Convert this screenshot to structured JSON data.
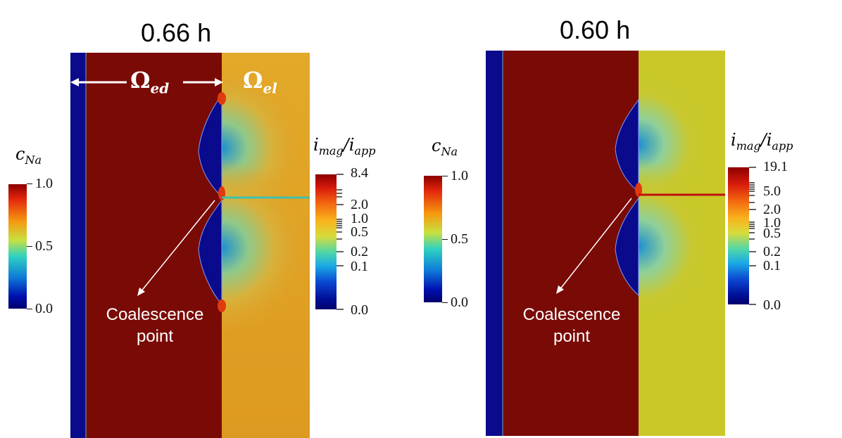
{
  "panels": [
    {
      "time_label": "0.66 h",
      "domain_labels": {
        "electrode": "Ω",
        "electrode_sub": "ed",
        "electrolyte": "Ω",
        "electrolyte_sub": "el"
      },
      "annotation": {
        "line1": "Coalescence",
        "line2": "point"
      },
      "cna_colorbar": {
        "label": "c",
        "label_sub": "Na",
        "ticks": [
          "1.0",
          "0.5",
          "0.0"
        ]
      },
      "imag_colorbar": {
        "label": "i",
        "label_sub1": "mag",
        "label_sep": "/i",
        "label_sub2": "app",
        "ticks": [
          "8.4",
          "2.0",
          "1.0",
          "0.5",
          "0.2",
          "0.1",
          "0.0"
        ]
      },
      "field_colors": {
        "electrode": "#7a0a06",
        "electrolyte": "#e0a025",
        "depleted": "#0a0a8c"
      }
    },
    {
      "time_label": "0.60 h",
      "annotation": {
        "line1": "Coalescence",
        "line2": "point"
      },
      "cna_colorbar": {
        "label": "c",
        "label_sub": "Na",
        "ticks": [
          "1.0",
          "0.5",
          "0.0"
        ]
      },
      "imag_colorbar": {
        "label": "i",
        "label_sub1": "mag",
        "label_sep": "/i",
        "label_sub2": "app",
        "ticks": [
          "19.1",
          "5.0",
          "2.0",
          "1.0",
          "0.5",
          "0.2",
          "0.1",
          "0.0"
        ]
      },
      "field_colors": {
        "electrode": "#7a0a06",
        "electrolyte": "#c9c828",
        "depleted": "#0a0a8c"
      }
    }
  ]
}
